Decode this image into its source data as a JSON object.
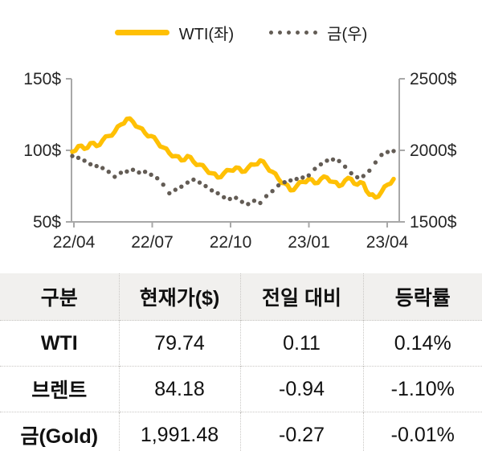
{
  "legend": {
    "wti": "WTI(좌)",
    "gold": "금(우)"
  },
  "chart_data": {
    "type": "line",
    "legend_position": "top",
    "grid": false,
    "x_ticks": [
      "22/04",
      "22/07",
      "22/10",
      "23/01",
      "23/04"
    ],
    "y_left": {
      "ticks": [
        "150$",
        "100$",
        "50$"
      ],
      "range": [
        50,
        150
      ]
    },
    "y_right": {
      "ticks": [
        "2500$",
        "2000$",
        "1500$"
      ],
      "range": [
        1500,
        2500
      ]
    },
    "series": [
      {
        "name": "WTI(좌)",
        "axis": "left",
        "style": "solid",
        "color": "#FFC004",
        "values": [
          99,
          103,
          101,
          105,
          103,
          107,
          110,
          113,
          118,
          122,
          120,
          116,
          112,
          110,
          106,
          102,
          98,
          96,
          93,
          96,
          92,
          90,
          87,
          84,
          81,
          84,
          86,
          88,
          85,
          88,
          90,
          93,
          89,
          85,
          80,
          77,
          72,
          75,
          78,
          80,
          77,
          80,
          81,
          78,
          75,
          79,
          80,
          76,
          77,
          69,
          67,
          71,
          76,
          80
        ]
      },
      {
        "name": "금(우)",
        "axis": "right",
        "style": "dotted",
        "color": "#635C55",
        "values": [
          1960,
          1948,
          1928,
          1903,
          1890,
          1876,
          1850,
          1815,
          1843,
          1852,
          1864,
          1845,
          1850,
          1830,
          1805,
          1760,
          1700,
          1724,
          1746,
          1775,
          1795,
          1775,
          1750,
          1720,
          1700,
          1672,
          1660,
          1668,
          1640,
          1625,
          1648,
          1632,
          1680,
          1715,
          1755,
          1777,
          1790,
          1800,
          1810,
          1825,
          1870,
          1902,
          1928,
          1936,
          1925,
          1886,
          1840,
          1812,
          1820,
          1858,
          1915,
          1968,
          1988,
          1995
        ]
      }
    ]
  },
  "table": {
    "headers": [
      "구분",
      "현재가($)",
      "전일 대비",
      "등락률"
    ],
    "rows": [
      {
        "label": "WTI",
        "price": "79.74",
        "change": "0.11",
        "pct": "0.14%"
      },
      {
        "label": "브렌트",
        "price": "84.18",
        "change": "-0.94",
        "pct": "-1.10%"
      },
      {
        "label": "금(Gold)",
        "price": "1,991.48",
        "change": "-0.27",
        "pct": "-0.01%"
      }
    ]
  },
  "colors": {
    "wti": "#FFC004",
    "gold_dots": "#635C55",
    "axis": "#A8A8A8",
    "tick_text": "#262626",
    "header_bg": "#F1F0EE",
    "table_border": "#C9C7C4"
  }
}
